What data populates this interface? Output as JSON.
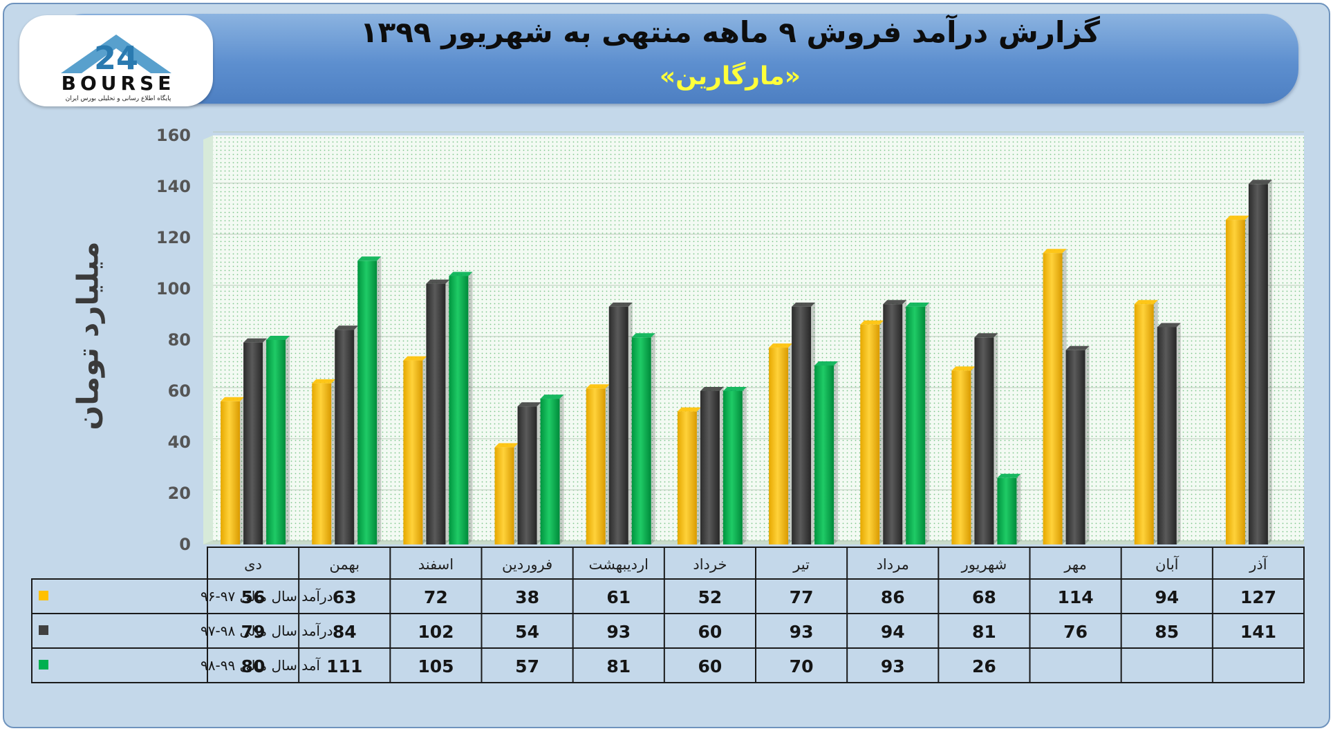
{
  "header": {
    "title": "گزارش درآمد فروش ۹ ماهه منتهی به شهریور ۱۳۹۹",
    "subtitle": "«مارگارین»"
  },
  "logo": {
    "text": "BOURSE",
    "mark": "24",
    "subtext": "پایگاه اطلاع رسانی و تحلیلی بورس ایران"
  },
  "colors": {
    "series_1": "#ffc000",
    "series_2": "#404040",
    "series_3": "#00b050"
  },
  "chart_data": {
    "type": "bar",
    "title": "گزارش درآمد فروش ۹ ماهه منتهی به شهریور ۱۳۹۹",
    "subtitle": "«مارگارین»",
    "ylabel": "میلیارد تومان",
    "xlabel": "",
    "ylim": [
      0,
      160
    ],
    "yticks": [
      0,
      20,
      40,
      60,
      80,
      100,
      120,
      140,
      160
    ],
    "grid": true,
    "legend": "data-table",
    "categories": [
      "دی",
      "بهمن",
      "اسفند",
      "فروردین",
      "اردیبهشت",
      "خرداد",
      "تیر",
      "مرداد",
      "شهریور",
      "مهر",
      "آبان",
      "آذر"
    ],
    "series": [
      {
        "name": "درآمد سال مالی ۹۷-۹۶",
        "values": [
          56,
          63,
          72,
          38,
          61,
          52,
          77,
          86,
          68,
          114,
          94,
          127
        ]
      },
      {
        "name": "درآمد سال مالی ۹۸-۹۷",
        "values": [
          79,
          84,
          102,
          54,
          93,
          60,
          93,
          94,
          81,
          76,
          85,
          141
        ]
      },
      {
        "name": "آمد سال مالی ۹۹-۹۸",
        "values": [
          80,
          111,
          105,
          57,
          81,
          60,
          70,
          93,
          26,
          null,
          null,
          null
        ]
      }
    ]
  }
}
